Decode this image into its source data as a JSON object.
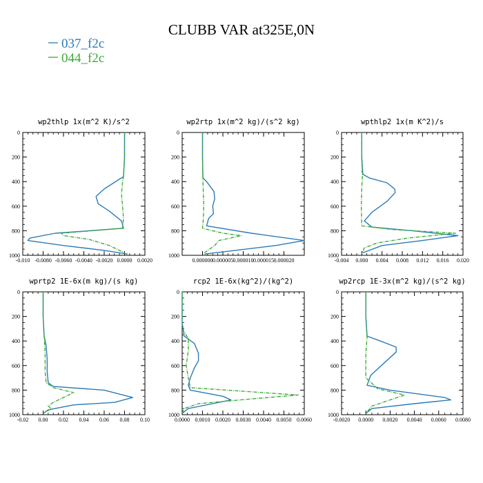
{
  "figure": {
    "title": "CLUBB VAR at325E,0N",
    "series_colors": {
      "037_f2c": "#2a7ab8",
      "044_f2c": "#3aaa35"
    },
    "legend": [
      {
        "label": "037_f2c",
        "color": "#2a7ab8",
        "dashed": false
      },
      {
        "label": "044_f2c",
        "color": "#3aaa35",
        "dashed": true
      }
    ]
  },
  "chart_data": [
    {
      "type": "line",
      "title": "wp2thlp  1x(m^2 K)/s^2",
      "xlim": [
        -0.01,
        0.002
      ],
      "ylim": [
        1000,
        0
      ],
      "xticks": [
        -0.01,
        -0.008,
        -0.006,
        -0.004,
        -0.002,
        0,
        0.002
      ],
      "xtick_labels": [
        "-0.010",
        "-0.0080",
        "-0.0060",
        "-0.0040",
        "-0.0020",
        "0.0000",
        "0.0020"
      ],
      "yticks": [
        0,
        200,
        400,
        600,
        800,
        1000
      ],
      "ytick_labels": [
        "0",
        "200",
        "400",
        "600",
        "800",
        "1000"
      ],
      "series": [
        {
          "name": "037_f2c",
          "x": [
            0,
            0,
            -0.0001,
            -0.0005,
            -0.002,
            -0.0028,
            -0.0026,
            -0.0015,
            -0.0003,
            -0.0001,
            -0.0068,
            -0.0093,
            -0.0095,
            -0.006,
            -0.002,
            0.0003
          ],
          "y": [
            0,
            200,
            360,
            380,
            460,
            520,
            580,
            640,
            720,
            780,
            820,
            860,
            880,
            920,
            960,
            990
          ]
        },
        {
          "name": "044_f2c",
          "x": [
            0,
            0,
            -0.0001,
            -0.0002,
            -0.0003,
            -0.0002,
            -0.0001,
            -0.0002,
            -0.0062,
            -0.006,
            -0.0035,
            -0.0015,
            0
          ],
          "y": [
            0,
            200,
            360,
            400,
            500,
            600,
            700,
            780,
            820,
            840,
            870,
            920,
            980
          ]
        }
      ]
    },
    {
      "type": "line",
      "title": "wp2rtp  1x(m^2 kg)/(s^2 kg)",
      "xlim": [
        -5e-06,
        2.5e-05
      ],
      "ylim": [
        1000,
        0
      ],
      "xticks": [
        0,
        5e-06,
        1e-05,
        1.5e-05,
        2e-05
      ],
      "xtick_labels": [
        "0.000000",
        "0.000005",
        "0.000010",
        "0.000015",
        "0.000020"
      ],
      "yticks": [
        0,
        200,
        400,
        600,
        800,
        1000
      ],
      "ytick_labels": [
        "0",
        "200",
        "400",
        "600",
        "800",
        "1000"
      ],
      "series": [
        {
          "name": "037_f2c",
          "x": [
            0,
            0,
            1e-07,
            1e-06,
            2.8e-06,
            3e-06,
            2.5e-06,
            2.7e-06,
            1.5e-06,
            1e-06,
            1.2e-05,
            2.5e-05,
            1.8e-05,
            8e-06,
            5e-07
          ],
          "y": [
            0,
            200,
            370,
            400,
            480,
            540,
            600,
            660,
            700,
            760,
            820,
            880,
            920,
            960,
            990
          ]
        },
        {
          "name": "044_f2c",
          "x": [
            0,
            0,
            1e-07,
            2e-07,
            3e-07,
            2e-07,
            0,
            5e-06,
            9.5e-06,
            4e-06,
            3e-06,
            5e-07
          ],
          "y": [
            0,
            200,
            380,
            500,
            600,
            700,
            780,
            820,
            840,
            880,
            920,
            980
          ]
        }
      ]
    },
    {
      "type": "line",
      "title": "wpthlp2  1x(m K^2)/s",
      "xlim": [
        -0.004,
        0.02
      ],
      "ylim": [
        1000,
        0
      ],
      "xticks": [
        -0.004,
        0,
        0.004,
        0.008,
        0.012,
        0.016,
        0.02
      ],
      "xtick_labels": [
        "-0.004",
        "0.000",
        "0.004",
        "0.008",
        "0.012",
        "0.016",
        "0.020"
      ],
      "yticks": [
        0,
        200,
        400,
        600,
        800,
        1000
      ],
      "ytick_labels": [
        "0",
        "200",
        "400",
        "600",
        "800",
        "1000"
      ],
      "series": [
        {
          "name": "037_f2c",
          "x": [
            0,
            0,
            0.0002,
            0.0015,
            0.005,
            0.0065,
            0.0066,
            0.005,
            0.002,
            0.0005,
            0.002,
            0.01,
            0.019,
            0.012,
            0.004,
            0.0002
          ],
          "y": [
            0,
            200,
            340,
            370,
            410,
            460,
            490,
            560,
            650,
            720,
            770,
            800,
            840,
            880,
            920,
            980
          ]
        },
        {
          "name": "044_f2c",
          "x": [
            0,
            0,
            0.0001,
            0,
            -0.0001,
            0,
            0.006,
            0.0185,
            0.009,
            0.003,
            0.0005,
            0
          ],
          "y": [
            0,
            200,
            370,
            450,
            600,
            760,
            790,
            820,
            860,
            900,
            940,
            990
          ]
        }
      ]
    },
    {
      "type": "line",
      "title": "wprtp2  1E-6x(m kg)/(s kg)",
      "xlim": [
        -0.02,
        0.1
      ],
      "ylim": [
        1000,
        0
      ],
      "xticks": [
        -0.02,
        0,
        0.02,
        0.04,
        0.06,
        0.08,
        0.1
      ],
      "xtick_labels": [
        "-0.02",
        "0.00",
        "0.02",
        "0.04",
        "0.06",
        "0.08",
        "0.10"
      ],
      "yticks": [
        0,
        200,
        400,
        600,
        800,
        1000
      ],
      "ytick_labels": [
        "0",
        "200",
        "400",
        "600",
        "800",
        "1000"
      ],
      "series": [
        {
          "name": "037_f2c",
          "x": [
            0,
            0,
            0.001,
            0.003,
            0.004,
            0.004,
            0.005,
            0.01,
            0.06,
            0.088,
            0.07,
            0.03,
            0.005,
            0
          ],
          "y": [
            0,
            200,
            360,
            440,
            550,
            650,
            740,
            770,
            800,
            860,
            900,
            920,
            960,
            990
          ]
        },
        {
          "name": "044_f2c",
          "x": [
            0,
            0,
            0.001,
            0.002,
            0.002,
            0.003,
            0.01,
            0.03,
            0.02,
            0.01,
            0.005,
            0.008,
            0
          ],
          "y": [
            0,
            200,
            360,
            500,
            650,
            740,
            780,
            820,
            860,
            900,
            930,
            950,
            990
          ]
        }
      ]
    },
    {
      "type": "line",
      "title": "rcp2  1E-6x(kg^2)/(kg^2)",
      "xlim": [
        0,
        0.006
      ],
      "ylim": [
        1000,
        0
      ],
      "xticks": [
        0,
        0.001,
        0.002,
        0.003,
        0.004,
        0.005,
        0.006
      ],
      "xtick_labels": [
        "0.0000",
        "0.0010",
        "0.0020",
        "0.0030",
        "0.0040",
        "0.0050",
        "0.0060"
      ],
      "yticks": [
        0,
        200,
        400,
        600,
        800,
        1000
      ],
      "ytick_labels": [
        "0",
        "200",
        "400",
        "600",
        "800",
        "1000"
      ],
      "series": [
        {
          "name": "037_f2c",
          "x": [
            0,
            0,
            0.0001,
            0.0006,
            0.0008,
            0.0008,
            0.0006,
            0.0004,
            0.0003,
            0.0004,
            0.002,
            0.0024,
            0.0015,
            0.0003,
            0
          ],
          "y": [
            0,
            250,
            360,
            420,
            500,
            560,
            620,
            700,
            760,
            800,
            850,
            880,
            910,
            950,
            990
          ]
        },
        {
          "name": "044_f2c",
          "x": [
            0,
            0,
            0.0003,
            0.0003,
            0.0002,
            0.0003,
            0.0004,
            0.0057,
            0.0035,
            0.0008,
            0.0001,
            0
          ],
          "y": [
            0,
            300,
            380,
            480,
            600,
            700,
            780,
            840,
            870,
            910,
            950,
            990
          ]
        }
      ]
    },
    {
      "type": "line",
      "title": "wp2rcp  1E-3x(m^2 kg)/(s^2 kg)",
      "xlim": [
        -0.002,
        0.008
      ],
      "ylim": [
        1000,
        0
      ],
      "xticks": [
        -0.002,
        0,
        0.002,
        0.004,
        0.006,
        0.008
      ],
      "xtick_labels": [
        "-0.0020",
        "0.0000",
        "0.0020",
        "0.0040",
        "0.0060",
        "0.0080"
      ],
      "yticks": [
        0,
        200,
        400,
        600,
        800,
        1000
      ],
      "ytick_labels": [
        "0",
        "200",
        "400",
        "600",
        "800",
        "1000"
      ],
      "series": [
        {
          "name": "037_f2c",
          "x": [
            0,
            0,
            0.0001,
            0.0012,
            0.0025,
            0.0025,
            0.0015,
            0.0004,
            0.0001,
            0.002,
            0.0065,
            0.007,
            0.004,
            0.0005,
            0
          ],
          "y": [
            0,
            200,
            360,
            400,
            450,
            490,
            580,
            680,
            760,
            800,
            860,
            880,
            910,
            950,
            990
          ]
        },
        {
          "name": "044_f2c",
          "x": [
            0,
            0,
            0.0001,
            0,
            0,
            0.001,
            0.0032,
            0.002,
            0.0005,
            0
          ],
          "y": [
            0,
            200,
            370,
            500,
            700,
            790,
            840,
            880,
            930,
            990
          ]
        }
      ]
    }
  ]
}
